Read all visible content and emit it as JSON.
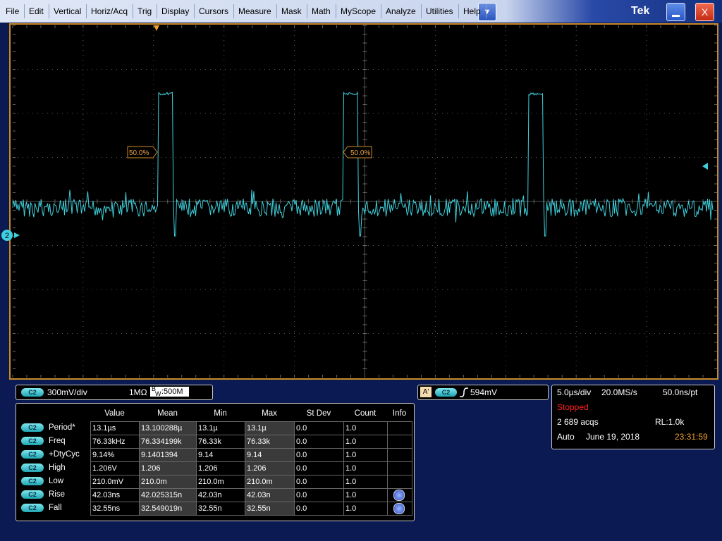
{
  "menu": [
    "File",
    "Edit",
    "Vertical",
    "Horiz/Acq",
    "Trig",
    "Display",
    "Cursors",
    "Measure",
    "Mask",
    "Math",
    "MyScope",
    "Analyze",
    "Utilities",
    "Help"
  ],
  "brand": "Tek",
  "close_button": "X",
  "waveform": {
    "channel_marker": "2",
    "level_labels": [
      "50.0%",
      "50.0%"
    ]
  },
  "channel": {
    "badge": "C2",
    "scale": "300mV/div",
    "impedance": "1MΩ",
    "bw_prefix": "B",
    "bw_sub": "W",
    "bandwidth": ":500M"
  },
  "trigger": {
    "source_badge": "A'",
    "channel_badge": "C2",
    "level": "594mV"
  },
  "acquisition": {
    "timebase": "5.0µs/div",
    "sample_rate": "20.0MS/s",
    "resolution": "50.0ns/pt",
    "state": "Stopped",
    "acqs": "2 689 acqs",
    "record_length": "RL:1.0k",
    "mode": "Auto",
    "date": "June 19, 2018",
    "time": "23:31:59"
  },
  "measurements": {
    "columns": [
      "Value",
      "Mean",
      "Min",
      "Max",
      "St Dev",
      "Count",
      "Info"
    ],
    "rows": [
      {
        "source": "C2",
        "name": "Period*",
        "cells": [
          "13.1µs",
          "13.100288µ",
          "13.1µ",
          "13.1µ",
          "0.0",
          "1.0"
        ]
      },
      {
        "source": "C2",
        "name": "Freq",
        "cells": [
          "76.33kHz",
          "76.334199k",
          "76.33k",
          "76.33k",
          "0.0",
          "1.0"
        ]
      },
      {
        "source": "C2",
        "name": "+DtyCyc",
        "cells": [
          "9.14%",
          "9.1401394",
          "9.14",
          "9.14",
          "0.0",
          "1.0"
        ]
      },
      {
        "source": "C2",
        "name": "High",
        "cells": [
          "1.206V",
          "1.206",
          "1.206",
          "1.206",
          "0.0",
          "1.0"
        ]
      },
      {
        "source": "C2",
        "name": "Low",
        "cells": [
          "210.0mV",
          "210.0m",
          "210.0m",
          "210.0m",
          "0.0",
          "1.0"
        ]
      },
      {
        "source": "C2",
        "name": "Rise",
        "cells": [
          "42.03ns",
          "42.025315n",
          "42.03n",
          "42.03n",
          "0.0",
          "1.0"
        ]
      },
      {
        "source": "C2",
        "name": "Fall",
        "cells": [
          "32.55ns",
          "32.549019n",
          "32.55n",
          "32.55n",
          "0.0",
          "1.0"
        ]
      }
    ]
  }
}
